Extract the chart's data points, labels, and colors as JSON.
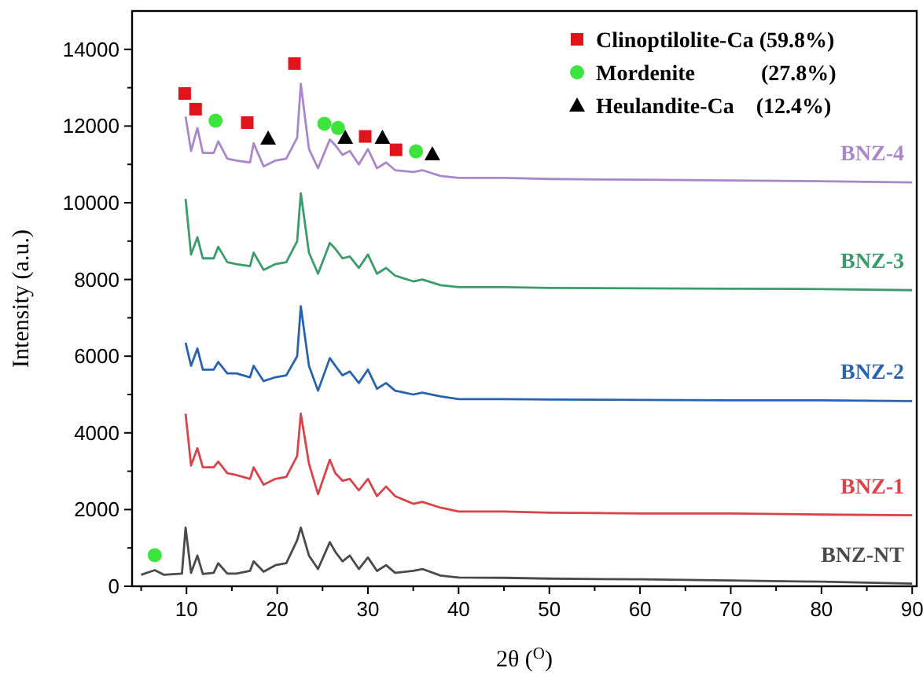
{
  "chart_data": {
    "type": "line",
    "xlabel": "2θ ($^{O}$)",
    "ylabel": "Intensity (a.u.)",
    "xlim": [
      4,
      90.5
    ],
    "ylim": [
      0,
      15000
    ],
    "xticks": [
      {
        "value": 5,
        "label": null
      },
      10,
      {
        "value": 15,
        "label": null
      },
      20,
      {
        "value": 25,
        "label": null
      },
      30,
      {
        "value": 35,
        "label": null
      },
      40,
      {
        "value": 45,
        "label": null
      },
      50,
      {
        "value": 55,
        "label": null
      },
      60,
      {
        "value": 65,
        "label": null
      },
      70,
      {
        "value": 75,
        "label": null
      },
      80,
      {
        "value": 85,
        "label": null
      },
      90
    ],
    "yticks": [
      0,
      {
        "value": 1000,
        "label": null
      },
      2000,
      {
        "value": 3000,
        "label": null
      },
      4000,
      {
        "value": 5000,
        "label": null
      },
      6000,
      {
        "value": 7000,
        "label": null
      },
      8000,
      {
        "value": 9000,
        "label": null
      },
      10000,
      {
        "value": 11000,
        "label": null
      },
      12000,
      {
        "value": 13000,
        "label": null
      },
      14000
    ],
    "x": [
      5,
      6.5,
      7.5,
      9.5,
      9.9,
      10.5,
      11.2,
      11.8,
      13,
      13.5,
      14.5,
      15.5,
      17,
      17.4,
      18.5,
      19.8,
      21,
      22.2,
      22.6,
      23.5,
      24.5,
      25.8,
      26.4,
      27.2,
      28,
      29,
      30,
      31,
      32,
      33,
      35,
      36,
      38,
      40,
      45,
      50,
      60,
      70,
      80,
      90
    ],
    "marker": "none",
    "line_style": "solid",
    "legend": "top right",
    "grid": false,
    "series": [
      {
        "name": "BNZ-NT",
        "color": "#4a4a4a",
        "values": [
          300,
          420,
          300,
          330,
          1530,
          350,
          800,
          320,
          350,
          600,
          330,
          330,
          400,
          650,
          380,
          550,
          600,
          1200,
          1530,
          800,
          450,
          1150,
          900,
          650,
          800,
          450,
          750,
          400,
          550,
          350,
          400,
          450,
          280,
          230,
          220,
          200,
          180,
          150,
          120,
          70
        ]
      },
      {
        "name": "BNZ-1",
        "color": "#d9434a",
        "values": [
          null,
          null,
          null,
          null,
          4500,
          3150,
          3600,
          3100,
          3100,
          3250,
          2950,
          2900,
          2800,
          3100,
          2650,
          2800,
          2850,
          3400,
          4500,
          3200,
          2400,
          3300,
          2950,
          2750,
          2800,
          2500,
          2800,
          2350,
          2600,
          2350,
          2150,
          2200,
          2050,
          1950,
          1950,
          1920,
          1900,
          1900,
          1870,
          1850
        ]
      },
      {
        "name": "BNZ-2",
        "color": "#2a63ad",
        "values": [
          null,
          null,
          null,
          null,
          6350,
          5750,
          6200,
          5650,
          5650,
          5850,
          5550,
          5550,
          5450,
          5750,
          5350,
          5450,
          5500,
          6000,
          7300,
          5750,
          5100,
          5950,
          5750,
          5500,
          5600,
          5300,
          5650,
          5150,
          5300,
          5100,
          5000,
          5050,
          4950,
          4880,
          4880,
          4870,
          4860,
          4850,
          4850,
          4830
        ]
      },
      {
        "name": "BNZ-3",
        "color": "#3a9c6a",
        "values": [
          null,
          null,
          null,
          null,
          10100,
          8650,
          9100,
          8550,
          8550,
          8850,
          8450,
          8400,
          8350,
          8700,
          8250,
          8400,
          8450,
          9000,
          10250,
          8700,
          8150,
          8950,
          8800,
          8550,
          8600,
          8300,
          8650,
          8150,
          8300,
          8100,
          7950,
          8000,
          7850,
          7800,
          7800,
          7780,
          7770,
          7760,
          7750,
          7720
        ]
      },
      {
        "name": "BNZ-4",
        "color": "#a987c8",
        "values": [
          null,
          null,
          null,
          null,
          12250,
          11350,
          11950,
          11300,
          11300,
          11600,
          11150,
          11100,
          11050,
          11550,
          10950,
          11100,
          11150,
          11700,
          13100,
          11400,
          10900,
          11650,
          11500,
          11250,
          11350,
          11000,
          11400,
          10900,
          11050,
          10850,
          10800,
          10850,
          10700,
          10650,
          10650,
          10620,
          10600,
          10580,
          10560,
          10530
        ]
      },
      {
        "name": "Clinoptilolite-Ca (59.8%)",
        "type": "scatter",
        "marker": "square",
        "color": "#e0141b",
        "x": [
          9.8,
          11.0,
          16.7,
          21.9,
          29.7,
          33.1
        ],
        "values": [
          12850,
          12440,
          12090,
          13630,
          11730,
          11380
        ]
      },
      {
        "name": "Mordenite            (27.8%)",
        "type": "scatter",
        "marker": "circle",
        "color": "#3de43d",
        "x": [
          6.5,
          13.2,
          25.2,
          26.7,
          35.3
        ],
        "values": [
          810,
          12140,
          12060,
          11950,
          11340
        ]
      },
      {
        "name": "Heulandite-Ca    (12.4%)",
        "type": "scatter",
        "marker": "triangle",
        "color": "#000000",
        "x": [
          19.0,
          27.5,
          31.6,
          37.1
        ],
        "values": [
          11680,
          11700,
          11700,
          11270
        ]
      }
    ]
  }
}
